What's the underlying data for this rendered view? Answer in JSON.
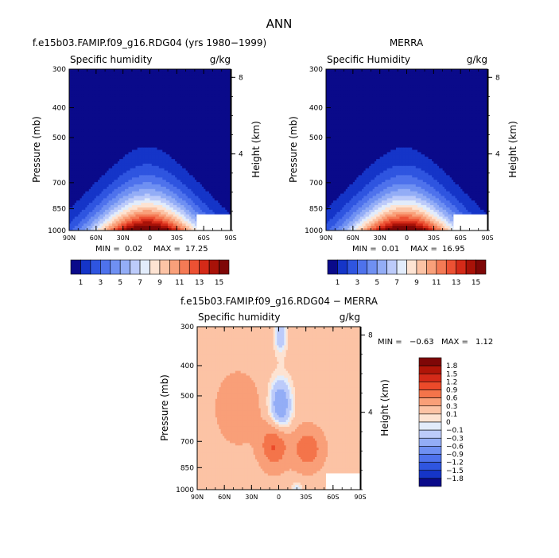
{
  "page_title": "ANN",
  "chart_data": [
    {
      "type": "heatmap",
      "title": "f.e15b03.FAMIP.f09_g16.RDG04 (yrs 1980−1999)",
      "subtitle_left": "Specific humidity",
      "subtitle_right": "g/kg",
      "ylabel": "Pressure (mb)",
      "y2label": "Height (km)",
      "x_ticks": [
        "90N",
        "60N",
        "30N",
        "0",
        "30S",
        "60S",
        "90S"
      ],
      "y_ticks": [
        "300",
        "400",
        "500",
        "700",
        "850",
        "1000"
      ],
      "y2_ticks": [
        "8",
        "4"
      ],
      "min_label": "MIN =",
      "min_value": "0.02",
      "max_label": "MAX =",
      "max_value": "17.25",
      "peak": 17.25,
      "colorbar_labels": [
        "1",
        "3",
        "5",
        "7",
        "9",
        "11",
        "13",
        "15"
      ],
      "colors": [
        "#0a0a8a",
        "#1535c8",
        "#2f55e0",
        "#4e72ec",
        "#6f90f2",
        "#93adf6",
        "#bccbfa",
        "#e2ecfb",
        "#fde3d2",
        "#fcc3a5",
        "#f9a07a",
        "#f47a55",
        "#ec5133",
        "#d42a18",
        "#a81208",
        "#7e0707"
      ]
    },
    {
      "type": "heatmap",
      "title": "MERRA",
      "subtitle_left": "Specific Humidity",
      "subtitle_right": "g/kg",
      "ylabel": "Pressure (mb)",
      "y2label": "Height (km)",
      "x_ticks": [
        "90N",
        "60N",
        "30N",
        "0",
        "30S",
        "60S",
        "90S"
      ],
      "y_ticks": [
        "300",
        "400",
        "500",
        "700",
        "850",
        "1000"
      ],
      "y2_ticks": [
        "8",
        "4"
      ],
      "min_label": "MIN =",
      "min_value": "0.01",
      "max_label": "MAX =",
      "max_value": "16.95",
      "peak": 16.95,
      "colorbar_labels": [
        "1",
        "3",
        "5",
        "7",
        "9",
        "11",
        "13",
        "15"
      ]
    },
    {
      "type": "heatmap",
      "title": "f.e15b03.FAMIP.f09_g16.RDG04 − MERRA",
      "subtitle_left": "Specific humidity",
      "subtitle_right": "g/kg",
      "ylabel": "Pressure (mb)",
      "y2label": "Height (km)",
      "x_ticks": [
        "90N",
        "60N",
        "30N",
        "0",
        "30S",
        "60S",
        "90S"
      ],
      "y_ticks": [
        "300",
        "400",
        "500",
        "700",
        "850",
        "1000"
      ],
      "y2_ticks": [
        "8",
        "4"
      ],
      "min_label": "MIN =",
      "min_value": "−0.63",
      "max_label": "MAX =",
      "max_value": "1.12",
      "colorbar_labels": [
        "1.8",
        "1.5",
        "1.2",
        "0.9",
        "0.6",
        "0.3",
        "0.1",
        "0",
        "−0.1",
        "−0.3",
        "−0.6",
        "−0.9",
        "−1.2",
        "−1.5",
        "−1.8"
      ],
      "colors": [
        "#7e0707",
        "#b01508",
        "#d42a18",
        "#ec4a2a",
        "#f4744a",
        "#f99f78",
        "#fcc3a5",
        "#fde3d2",
        "#e2ecfb",
        "#bccbfa",
        "#93adf6",
        "#6f90f2",
        "#4e72ec",
        "#2f55e0",
        "#1535c8",
        "#0a0a8a"
      ]
    }
  ]
}
